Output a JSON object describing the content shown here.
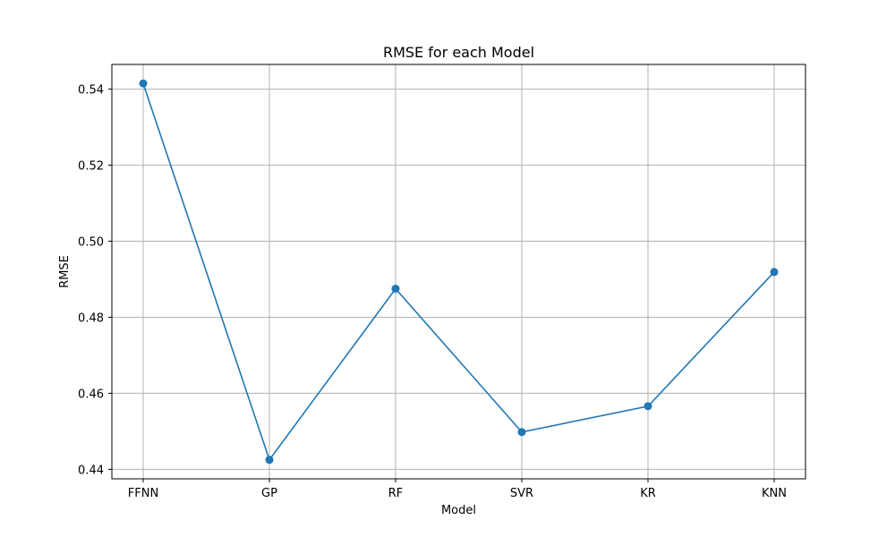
{
  "chart_data": {
    "type": "line",
    "title": "RMSE for each Model",
    "xlabel": "Model",
    "ylabel": "RMSE",
    "categories": [
      "FFNN",
      "GP",
      "RF",
      "SVR",
      "KR",
      "KNN"
    ],
    "series": [
      {
        "values": [
          0.5415,
          0.4425,
          0.4875,
          0.4498,
          0.4566,
          0.4919
        ]
      }
    ],
    "ylim": [
      0.4375,
      0.5465
    ],
    "yticks": [
      0.44,
      0.46,
      0.48,
      0.5,
      0.52,
      0.54
    ],
    "ytick_labels": [
      "0.44",
      "0.46",
      "0.48",
      "0.50",
      "0.52",
      "0.54"
    ],
    "grid": true,
    "line_color": "#1f77b4",
    "marker": "circle"
  }
}
